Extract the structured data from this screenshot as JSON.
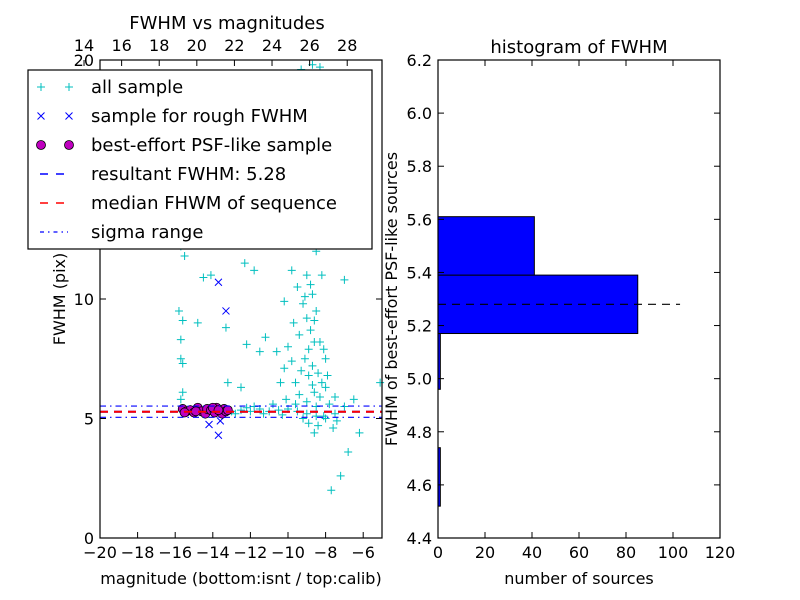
{
  "chart_data": [
    {
      "type": "scatter",
      "title": "FWHM vs magnitudes",
      "xlabel": "magnitude (bottom:isnt / top:calib)",
      "ylabel": "FWHM (pix)",
      "xlim": [
        -20,
        -5
      ],
      "ylim": [
        0,
        20
      ],
      "xticks": [
        "−20",
        "−18",
        "−16",
        "−14",
        "−12",
        "−10",
        "−8",
        "−6"
      ],
      "xtick_values": [
        -20,
        -18,
        -16,
        -14,
        -12,
        -10,
        -8,
        -6
      ],
      "yticks": [
        "0",
        "5",
        "10",
        "20"
      ],
      "ytick_values": [
        0,
        5,
        10,
        20
      ],
      "top_axis": {
        "ticks": [
          "14",
          "16",
          "18",
          "20",
          "22",
          "24",
          "26",
          "28"
        ],
        "values": [
          14,
          16,
          18,
          20,
          22,
          24,
          26,
          28
        ],
        "offset": 34.85
      },
      "legend_placement": "upper-left",
      "legend": [
        {
          "label": "all sample",
          "marker": "plus",
          "color": "#00bfbf"
        },
        {
          "label": "sample for rough FWHM",
          "marker": "x",
          "color": "#0000ff"
        },
        {
          "label": "best-effort PSF-like sample",
          "marker": "circle",
          "color": "#bf00bf"
        },
        {
          "label": "resultant FWHM: 5.28",
          "marker": "dashed",
          "color": "#0000ff"
        },
        {
          "label": "median FHWM of sequence",
          "marker": "dashed",
          "color": "#ff0000"
        },
        {
          "label": "sigma range",
          "marker": "dashdot",
          "color": "#0000ff"
        }
      ],
      "series": [
        {
          "name": "all sample",
          "points": [
            [
              -15.5,
              5.4
            ],
            [
              -15,
              5.3
            ],
            [
              -14.5,
              5.35
            ],
            [
              -14,
              5.3
            ],
            [
              -13.5,
              5.25
            ],
            [
              -13,
              5.3
            ],
            [
              -12.5,
              5.35
            ],
            [
              -12,
              5.3
            ],
            [
              -11.5,
              5.4
            ],
            [
              -11,
              5.3
            ],
            [
              -10.5,
              5.35
            ],
            [
              -10,
              5.4
            ],
            [
              -9.5,
              5.3
            ],
            [
              -9,
              5.2
            ],
            [
              -8.5,
              5.1
            ],
            [
              -8,
              5.0
            ],
            [
              -7.5,
              5.2
            ],
            [
              -7,
              5.5
            ],
            [
              -12.8,
              5.2
            ],
            [
              -11.8,
              5.5
            ],
            [
              -10.8,
              5.6
            ],
            [
              -12.2,
              5.45
            ],
            [
              -11.3,
              5.2
            ],
            [
              -10.3,
              5.15
            ],
            [
              -15.7,
              7.5
            ],
            [
              -15.6,
              7.3
            ],
            [
              -15.7,
              8.3
            ],
            [
              -15.8,
              9.5
            ],
            [
              -15.6,
              9.1
            ],
            [
              -15.7,
              12.2
            ],
            [
              -15.5,
              11.8
            ],
            [
              -15.6,
              6.1
            ],
            [
              -15.7,
              5.8
            ],
            [
              -14.8,
              9
            ],
            [
              -13.3,
              8.8
            ],
            [
              -13.2,
              6.5
            ],
            [
              -12.5,
              6.3
            ],
            [
              -12.2,
              8.1
            ],
            [
              -11.2,
              8.4
            ],
            [
              -11.5,
              7.8
            ],
            [
              -12.3,
              11.5
            ],
            [
              -13.5,
              12.5
            ],
            [
              -14.1,
              11
            ],
            [
              -14.5,
              10.9
            ],
            [
              -11.8,
              11.2
            ],
            [
              -10.2,
              9.9
            ],
            [
              -9.8,
              11.2
            ],
            [
              -9.5,
              13.5
            ],
            [
              -9.2,
              15
            ],
            [
              -9,
              17
            ],
            [
              -9.3,
              19.6
            ],
            [
              -8.7,
              19.8
            ],
            [
              -8.3,
              19.7
            ],
            [
              -9,
              18.5
            ],
            [
              -8.8,
              14
            ],
            [
              -8.5,
              12
            ],
            [
              -8.2,
              11
            ],
            [
              -7,
              10.8
            ],
            [
              -6.5,
              5.8
            ],
            [
              -6.8,
              3.6
            ],
            [
              -7.2,
              2.6
            ],
            [
              -7.7,
              2
            ],
            [
              -5.1,
              6.5
            ],
            [
              -6.2,
              4.4
            ],
            [
              -9.5,
              10.5
            ],
            [
              -9.2,
              9.8
            ],
            [
              -9,
              9.2
            ],
            [
              -8.8,
              8.7
            ],
            [
              -8.6,
              8.2
            ],
            [
              -8.9,
              7.9
            ],
            [
              -9.1,
              7.5
            ],
            [
              -8.7,
              7.2
            ],
            [
              -8.4,
              6.9
            ],
            [
              -8.2,
              6.5
            ],
            [
              -8.9,
              6.8
            ],
            [
              -9.3,
              7
            ],
            [
              -9.6,
              6.5
            ],
            [
              -9.8,
              7.4
            ],
            [
              -10,
              8
            ],
            [
              -10.2,
              7.1
            ],
            [
              -9.4,
              6
            ],
            [
              -8.6,
              6.1
            ],
            [
              -8.3,
              5.9
            ],
            [
              -8,
              6.3
            ],
            [
              -7.8,
              5.6
            ],
            [
              -8.1,
              5.1
            ],
            [
              -8.4,
              4.7
            ],
            [
              -8.6,
              4.4
            ],
            [
              -8.9,
              4.8
            ],
            [
              -9.2,
              5.0
            ],
            [
              -7.6,
              4.6
            ],
            [
              -7.4,
              4.9
            ],
            [
              -9,
              11
            ],
            [
              -8.7,
              10.2
            ],
            [
              -9.2,
              12.5
            ],
            [
              -8.9,
              13
            ],
            [
              -9.4,
              8.5
            ],
            [
              -8.5,
              9.5
            ],
            [
              -8.3,
              8.2
            ],
            [
              -9.7,
              9
            ],
            [
              -10.4,
              6.5
            ],
            [
              -10.6,
              7.8
            ],
            [
              -8,
              7.5
            ],
            [
              -7.9,
              6.8
            ],
            [
              -8.5,
              5.5
            ],
            [
              -9,
              5.7
            ],
            [
              -9.6,
              5.6
            ],
            [
              -10.1,
              5.8
            ],
            [
              -7.5,
              5.9
            ],
            [
              -8.8,
              10.6
            ],
            [
              -9.1,
              10.1
            ],
            [
              -8.6,
              9.1
            ],
            [
              -8.1,
              7.9
            ],
            [
              -8.7,
              6.4
            ]
          ]
        },
        {
          "name": "sample for rough FWHM",
          "points": [
            [
              -14.2,
              4.75
            ],
            [
              -13.7,
              4.3
            ],
            [
              -13.6,
              4.9
            ],
            [
              -13.3,
              9.5
            ],
            [
              -13.7,
              10.7
            ],
            [
              -13.8,
              5.3
            ],
            [
              -15,
              5.4
            ],
            [
              -14.5,
              5.35
            ]
          ]
        },
        {
          "name": "best-effort PSF-like sample",
          "points": [
            [
              -15.6,
              5.4
            ],
            [
              -15.4,
              5.3
            ],
            [
              -15.2,
              5.35
            ],
            [
              -15,
              5.25
            ],
            [
              -14.8,
              5.45
            ],
            [
              -14.6,
              5.3
            ],
            [
              -14.4,
              5.2
            ],
            [
              -14.3,
              5.4
            ],
            [
              -14.1,
              5.35
            ],
            [
              -13.9,
              5.25
            ],
            [
              -13.8,
              5.45
            ],
            [
              -13.6,
              5.3
            ],
            [
              -13.5,
              5.2
            ],
            [
              -13.4,
              5.4
            ],
            [
              -13.3,
              5.3
            ],
            [
              -13.2,
              5.35
            ],
            [
              -14.9,
              5.3
            ],
            [
              -15.5,
              5.25
            ],
            [
              -14,
              5.45
            ],
            [
              -13.7,
              5.35
            ]
          ]
        }
      ],
      "hlines": [
        {
          "name": "resultant FWHM",
          "y": 5.28,
          "style": "dashed",
          "color": "#0000ff"
        },
        {
          "name": "median FHWM of sequence",
          "y": 5.28,
          "style": "dashed",
          "color": "#ff0000"
        },
        {
          "name": "sigma range upper",
          "y": 5.52,
          "style": "dashdot",
          "color": "#0000ff"
        },
        {
          "name": "sigma range lower",
          "y": 5.05,
          "style": "dashdot",
          "color": "#0000ff"
        }
      ]
    },
    {
      "type": "bar",
      "orientation": "horizontal",
      "title": "histogram of FWHM",
      "xlabel": "number of sources",
      "ylabel": "FWHM of best-effort PSF-like sources",
      "xlim": [
        0,
        120
      ],
      "ylim": [
        4.4,
        6.2
      ],
      "xticks": [
        "0",
        "20",
        "40",
        "60",
        "80",
        "100",
        "120"
      ],
      "xtick_values": [
        0,
        20,
        40,
        60,
        80,
        100,
        120
      ],
      "yticks": [
        "4.4",
        "4.6",
        "4.8",
        "5.0",
        "5.2",
        "5.4",
        "5.6",
        "5.8",
        "6.0",
        "6.2"
      ],
      "ytick_values": [
        4.4,
        4.6,
        4.8,
        5.0,
        5.2,
        5.4,
        5.6,
        5.8,
        6.0,
        6.2
      ],
      "bar_color": "#0000ff",
      "bins": [
        {
          "from": 4.52,
          "to": 4.74,
          "count": 1
        },
        {
          "from": 4.74,
          "to": 4.96,
          "count": 0
        },
        {
          "from": 4.96,
          "to": 5.17,
          "count": 1
        },
        {
          "from": 5.17,
          "to": 5.39,
          "count": 85
        },
        {
          "from": 5.39,
          "to": 5.61,
          "count": 41
        }
      ],
      "reference_line": {
        "y": 5.28,
        "x_range": [
          0,
          103
        ],
        "style": "dashed",
        "color": "#000000"
      }
    }
  ]
}
